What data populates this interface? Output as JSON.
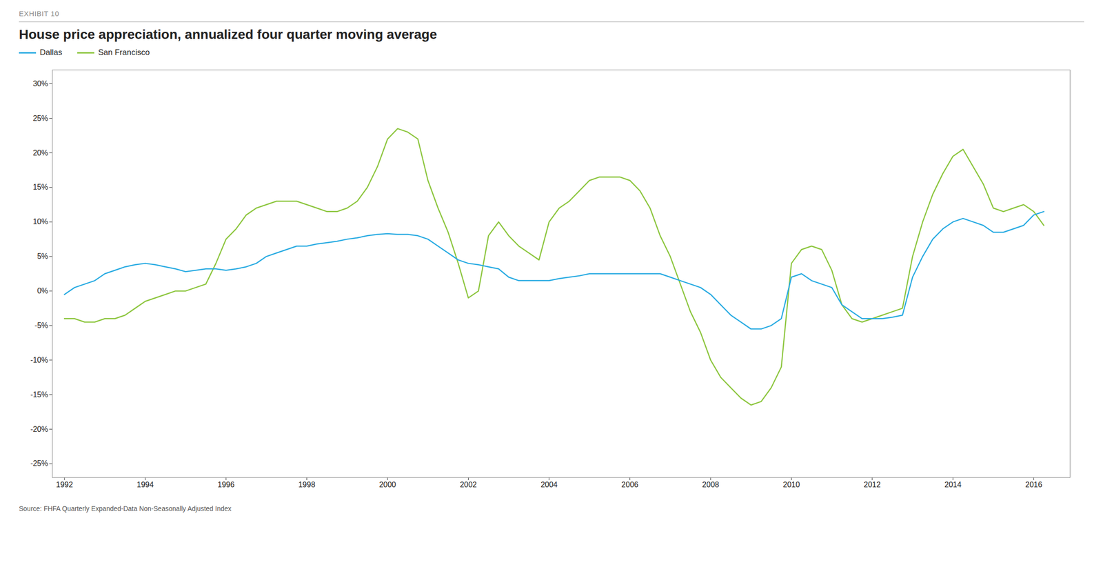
{
  "chart_data": {
    "type": "line",
    "title": "House price appreciation, annualized four quarter moving average",
    "subtitle": "EXHIBIT 10",
    "source": "Source: FHFA Quarterly Expanded-Data Non-Seasonally Adjusted Index",
    "x": [
      1992.0,
      1992.25,
      1992.5,
      1992.75,
      1993.0,
      1993.25,
      1993.5,
      1993.75,
      1994.0,
      1994.25,
      1994.5,
      1994.75,
      1995.0,
      1995.25,
      1995.5,
      1995.75,
      1996.0,
      1996.25,
      1996.5,
      1996.75,
      1997.0,
      1997.25,
      1997.5,
      1997.75,
      1998.0,
      1998.25,
      1998.5,
      1998.75,
      1999.0,
      1999.25,
      1999.5,
      1999.75,
      2000.0,
      2000.25,
      2000.5,
      2000.75,
      2001.0,
      2001.25,
      2001.5,
      2001.75,
      2002.0,
      2002.25,
      2002.5,
      2002.75,
      2003.0,
      2003.25,
      2003.5,
      2003.75,
      2004.0,
      2004.25,
      2004.5,
      2004.75,
      2005.0,
      2005.25,
      2005.5,
      2005.75,
      2006.0,
      2006.25,
      2006.5,
      2006.75,
      2007.0,
      2007.25,
      2007.5,
      2007.75,
      2008.0,
      2008.25,
      2008.5,
      2008.75,
      2009.0,
      2009.25,
      2009.5,
      2009.75,
      2010.0,
      2010.25,
      2010.5,
      2010.75,
      2011.0,
      2011.25,
      2011.5,
      2011.75,
      2012.0,
      2012.25,
      2012.5,
      2012.75,
      2013.0,
      2013.25,
      2013.5,
      2013.75,
      2014.0,
      2014.25,
      2014.5,
      2014.75,
      2015.0,
      2015.25,
      2015.5,
      2015.75,
      2016.0,
      2016.25
    ],
    "series": [
      {
        "name": "Dallas",
        "color": "#29ABE2",
        "values": [
          -0.005,
          0.005,
          0.01,
          0.015,
          0.025,
          0.03,
          0.035,
          0.038,
          0.04,
          0.038,
          0.035,
          0.032,
          0.028,
          0.03,
          0.032,
          0.032,
          0.03,
          0.032,
          0.035,
          0.04,
          0.05,
          0.055,
          0.06,
          0.065,
          0.065,
          0.068,
          0.07,
          0.072,
          0.075,
          0.077,
          0.08,
          0.082,
          0.083,
          0.082,
          0.082,
          0.08,
          0.075,
          0.065,
          0.055,
          0.045,
          0.04,
          0.038,
          0.035,
          0.032,
          0.02,
          0.015,
          0.015,
          0.015,
          0.015,
          0.018,
          0.02,
          0.022,
          0.025,
          0.025,
          0.025,
          0.025,
          0.025,
          0.025,
          0.025,
          0.025,
          0.02,
          0.015,
          0.01,
          0.005,
          -0.005,
          -0.02,
          -0.035,
          -0.045,
          -0.055,
          -0.055,
          -0.05,
          -0.04,
          0.02,
          0.025,
          0.015,
          0.01,
          0.005,
          -0.02,
          -0.03,
          -0.04,
          -0.04,
          -0.04,
          -0.038,
          -0.035,
          0.02,
          0.05,
          0.075,
          0.09,
          0.1,
          0.105,
          0.1,
          0.095,
          0.085,
          0.085,
          0.09,
          0.095,
          0.11,
          0.115
        ]
      },
      {
        "name": "San Francisco",
        "color": "#8DC63F",
        "values": [
          -0.04,
          -0.04,
          -0.045,
          -0.045,
          -0.04,
          -0.04,
          -0.035,
          -0.025,
          -0.015,
          -0.01,
          -0.005,
          0.0,
          0.0,
          0.005,
          0.01,
          0.04,
          0.075,
          0.09,
          0.11,
          0.12,
          0.125,
          0.13,
          0.13,
          0.13,
          0.125,
          0.12,
          0.115,
          0.115,
          0.12,
          0.13,
          0.15,
          0.18,
          0.22,
          0.235,
          0.23,
          0.22,
          0.16,
          0.12,
          0.085,
          0.04,
          -0.01,
          0.0,
          0.08,
          0.1,
          0.08,
          0.065,
          0.055,
          0.045,
          0.1,
          0.12,
          0.13,
          0.145,
          0.16,
          0.165,
          0.165,
          0.165,
          0.16,
          0.145,
          0.12,
          0.08,
          0.05,
          0.01,
          -0.03,
          -0.06,
          -0.1,
          -0.125,
          -0.14,
          -0.155,
          -0.165,
          -0.16,
          -0.14,
          -0.11,
          0.04,
          0.06,
          0.065,
          0.06,
          0.03,
          -0.02,
          -0.04,
          -0.045,
          -0.04,
          -0.035,
          -0.03,
          -0.025,
          0.05,
          0.1,
          0.14,
          0.17,
          0.195,
          0.205,
          0.18,
          0.155,
          0.12,
          0.115,
          0.12,
          0.125,
          0.115,
          0.095
        ]
      }
    ],
    "xlim": [
      1991.7,
      2016.9
    ],
    "xticks": [
      1992,
      1994,
      1996,
      1998,
      2000,
      2002,
      2004,
      2006,
      2008,
      2010,
      2012,
      2014,
      2016
    ],
    "ylim": [
      -0.27,
      0.32
    ],
    "yticks": [
      {
        "value": -0.25,
        "label": "-25%"
      },
      {
        "value": -0.2,
        "label": "-20%"
      },
      {
        "value": -0.15,
        "label": "-15%"
      },
      {
        "value": -0.1,
        "label": "-10%"
      },
      {
        "value": -0.05,
        "label": "-5%"
      },
      {
        "value": 0.0,
        "label": "0%"
      },
      {
        "value": 0.05,
        "label": "5%"
      },
      {
        "value": 0.1,
        "label": "10%"
      },
      {
        "value": 0.15,
        "label": "15%"
      },
      {
        "value": 0.2,
        "label": "20%"
      },
      {
        "value": 0.25,
        "label": "25%"
      },
      {
        "value": 0.3,
        "label": "30%"
      }
    ],
    "grid": false,
    "legend": "top"
  }
}
